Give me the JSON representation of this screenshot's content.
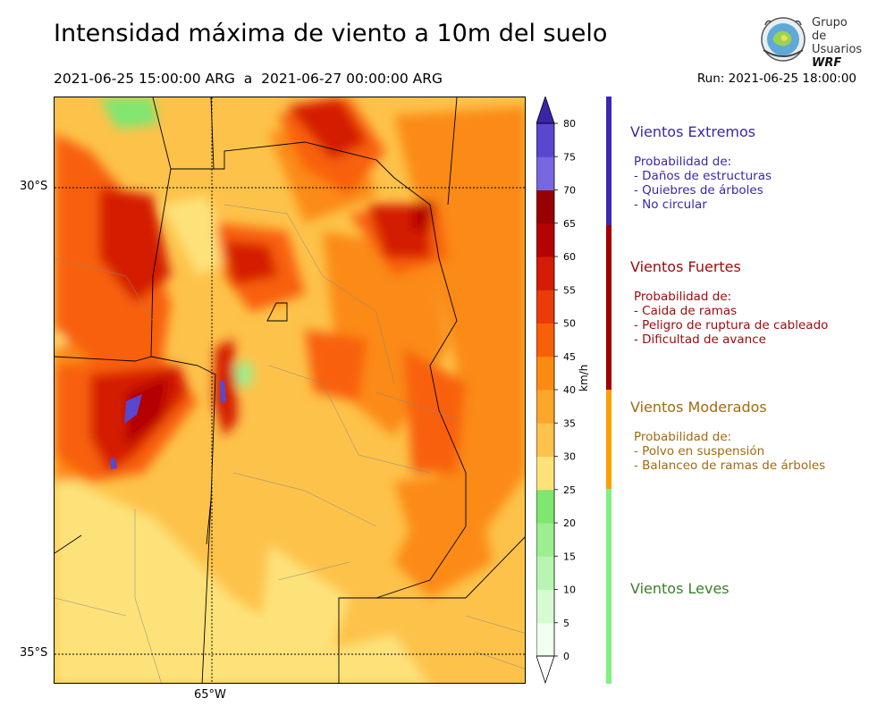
{
  "header": {
    "title": "Intensidad máxima de viento a 10m del suelo",
    "period": "2021-06-25 15:00:00 ARG  a  2021-06-27 00:00:00 ARG",
    "run": "Run: 2021-06-25 18:00:00"
  },
  "logo": {
    "line1": "Grupo de",
    "line2": "Usuarios",
    "line3": "WRF"
  },
  "map": {
    "lat_labels": [
      "30°S",
      "35°S"
    ],
    "lon_labels": [
      "65°W"
    ]
  },
  "colorbar": {
    "unit": "km/h",
    "ticks": [
      "0",
      "5",
      "10",
      "15",
      "20",
      "25",
      "30",
      "35",
      "40",
      "45",
      "50",
      "55",
      "60",
      "65",
      "70",
      "75",
      "80"
    ],
    "colors": [
      "#f0fff0",
      "#d6fad2",
      "#b9f5b2",
      "#9cee90",
      "#7fe66f",
      "#fde27a",
      "#fdc24a",
      "#fca62a",
      "#fb8a12",
      "#f86008",
      "#ea3b08",
      "#d41c06",
      "#b40402",
      "#990000",
      "#7767e0",
      "#5a47cf",
      "#3a25a9"
    ]
  },
  "legend": {
    "categories": [
      {
        "title": "Vientos Extremos",
        "prob_header": "Probabilidad de:",
        "items": [
          "- Daños de estructuras",
          "- Quiebres de árboles",
          "- No circular"
        ],
        "color": "#3a28a8"
      },
      {
        "title": "Vientos Fuertes",
        "prob_header": "Probabilidad de:",
        "items": [
          "- Caida de ramas",
          "- Peligro de ruptura de cableado",
          "- Dificultad de avance"
        ],
        "color": "#9c0a0a"
      },
      {
        "title": "Vientos Moderados",
        "prob_header": "Probabilidad de:",
        "items": [
          "- Polvo en suspensión",
          "- Balanceo de ramas de árboles"
        ],
        "color": "#a36a0d"
      },
      {
        "title": "Vientos Leves",
        "prob_header": "",
        "items": [],
        "color": "#3a7f2c"
      }
    ],
    "bar_colors": [
      "#3a28b0",
      "#a00000",
      "#fca000",
      "#80f080"
    ]
  }
}
